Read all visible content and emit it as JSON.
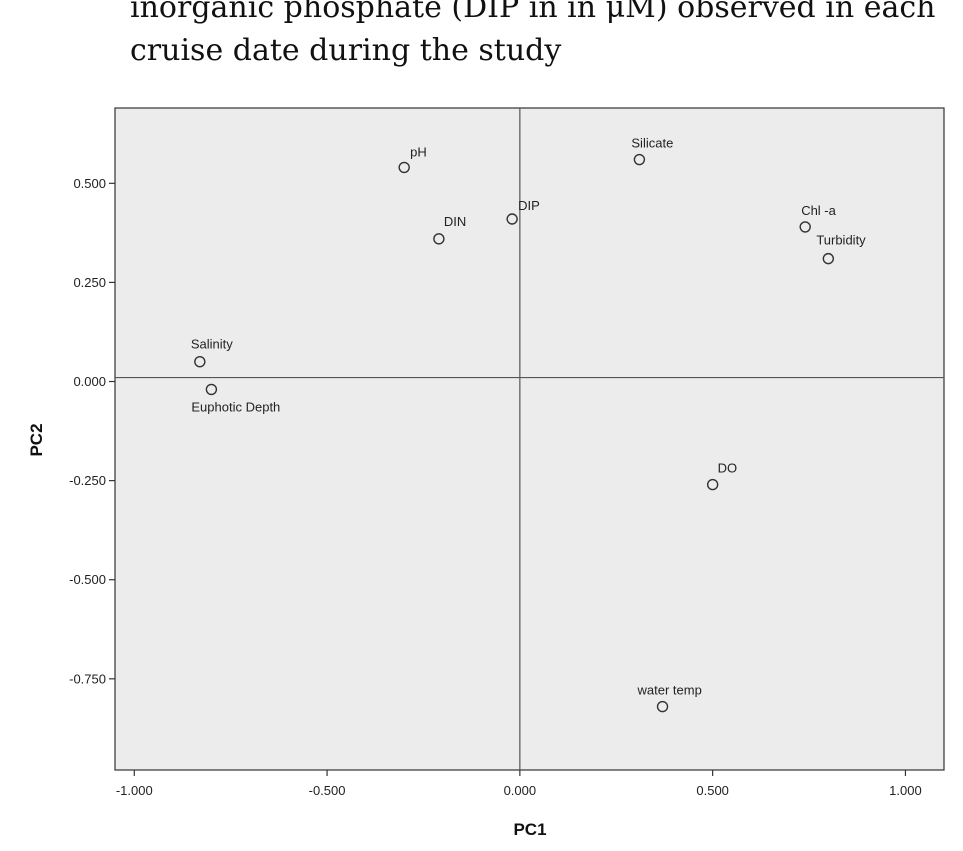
{
  "caption": {
    "line1": "inorganic phosphate (DIP in in μM) observed in each",
    "line2": "cruise date during the study"
  },
  "chart_data": {
    "type": "scatter",
    "xlabel": "PC1",
    "ylabel": "PC2",
    "xlim": [
      -1.05,
      1.1
    ],
    "ylim": [
      -0.98,
      0.69
    ],
    "xticks": [
      -1.0,
      -0.5,
      0.0,
      0.5,
      1.0
    ],
    "xtick_labels": [
      "-1.000",
      "-0.500",
      "0.000",
      "0.500",
      "1.000"
    ],
    "yticks": [
      0.5,
      0.25,
      0.0,
      -0.25,
      -0.5,
      -0.75
    ],
    "ytick_labels": [
      "0.500",
      "0.250",
      "0.000",
      "-0.250",
      "-0.500",
      "-0.750"
    ],
    "grid": false,
    "reference_lines": {
      "x": 0.0,
      "y": 0.01
    },
    "plot_background": "#ececec",
    "points": [
      {
        "label": "pH",
        "x": -0.3,
        "y": 0.54
      },
      {
        "label": "Silicate",
        "x": 0.31,
        "y": 0.56
      },
      {
        "label": "DIP",
        "x": -0.02,
        "y": 0.41
      },
      {
        "label": "DIN",
        "x": -0.21,
        "y": 0.36
      },
      {
        "label": "Chl -a",
        "x": 0.74,
        "y": 0.39
      },
      {
        "label": "Turbidity",
        "x": 0.8,
        "y": 0.31
      },
      {
        "label": "Salinity",
        "x": -0.83,
        "y": 0.05
      },
      {
        "label": "Euphotic Depth",
        "x": -0.8,
        "y": -0.02
      },
      {
        "label": "DO",
        "x": 0.5,
        "y": -0.26
      },
      {
        "label": "water temp",
        "x": 0.37,
        "y": -0.82
      }
    ]
  }
}
